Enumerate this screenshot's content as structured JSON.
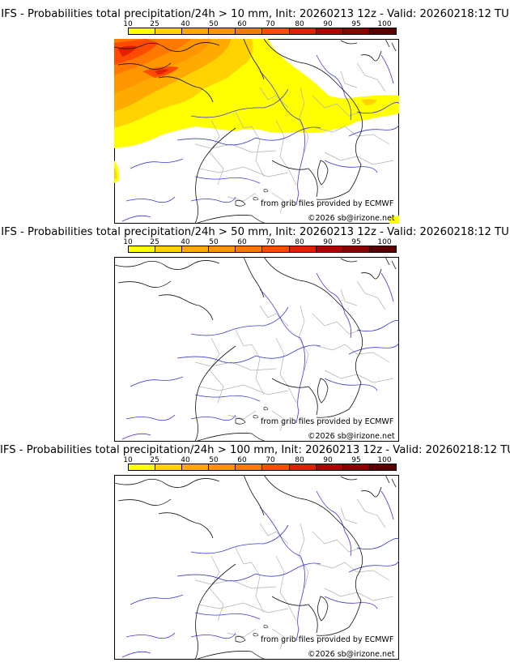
{
  "colorbar": {
    "labels": [
      "10",
      "25",
      "40",
      "50",
      "60",
      "70",
      "80",
      "90",
      "95",
      "100"
    ],
    "colors": [
      "#ffff00",
      "#ffd200",
      "#ffaa00",
      "#ff9600",
      "#ff7800",
      "#ff4b00",
      "#e61e00",
      "#b40000",
      "#8c0000",
      "#5a0000"
    ]
  },
  "panels": [
    {
      "title": "IFS - Probabilities total precipitation/24h > 10 mm, Init: 20260213 12z - Valid: 20260218:12 TU",
      "credit_source": "from grib files provided by ECMWF",
      "credit_copyright": "©2026 sb@irizone.net",
      "has_precip": true
    },
    {
      "title": "IFS - Probabilities total precipitation/24h > 50 mm, Init: 20260213 12z - Valid: 20260218:12 TU",
      "credit_source": "from grib files provided by ECMWF",
      "credit_copyright": "©2026 sb@irizone.net",
      "has_precip": false
    },
    {
      "title": "IFS - Probabilities total precipitation/24h > 100 mm, Init: 20260213 12z - Valid: 20260218:12 TU",
      "credit_source": "from grib files provided by ECMWF",
      "credit_copyright": "©2026 sb@irizone.net",
      "has_precip": false
    }
  ]
}
